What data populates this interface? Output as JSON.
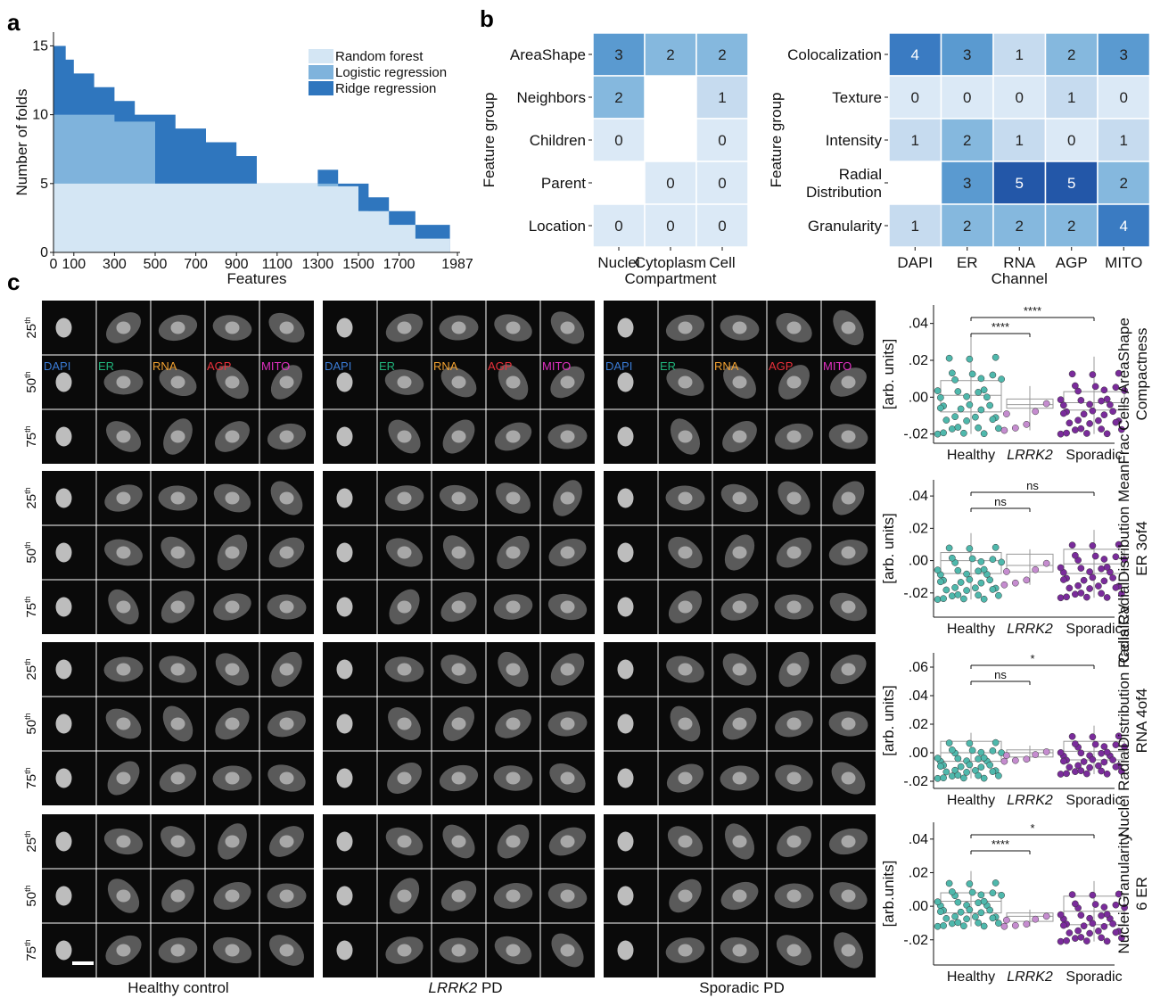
{
  "panels": {
    "a": "a",
    "b": "b",
    "c": "c"
  },
  "chart_data": [
    {
      "type": "bar",
      "title": "",
      "xlabel": "Features",
      "ylabel": "Number of folds",
      "ylim": [
        0,
        16
      ],
      "xlim": [
        0,
        2000
      ],
      "xticks": [
        "0",
        "100",
        "300",
        "500",
        "700",
        "900",
        "1100",
        "1300",
        "1500",
        "1700",
        "1987"
      ],
      "xtick_values": [
        0,
        100,
        300,
        500,
        700,
        900,
        1100,
        1300,
        1500,
        1700,
        1987
      ],
      "yticks": [
        "0",
        "5",
        "10",
        "15"
      ],
      "legend": [
        "Random forest",
        "Logistic regression",
        "Ridge regression"
      ],
      "legend_position": "top-right",
      "colors": {
        "Random forest": "#d4e6f4",
        "Logistic regression": "#7fb3dc",
        "Ridge regression": "#2f76be"
      },
      "stacked_total_steps": [
        [
          0,
          15
        ],
        [
          60,
          14
        ],
        [
          100,
          13
        ],
        [
          200,
          12
        ],
        [
          300,
          11
        ],
        [
          400,
          10
        ],
        [
          600,
          9
        ],
        [
          750,
          8
        ],
        [
          900,
          7
        ],
        [
          1000,
          5
        ],
        [
          1300,
          6
        ],
        [
          1400,
          5
        ],
        [
          1550,
          4
        ],
        [
          1650,
          3
        ],
        [
          1780,
          2
        ],
        [
          1950,
          0
        ]
      ]
    },
    {
      "type": "heatmap",
      "ylabel": "Feature group",
      "xlabel": "Compartment",
      "columns": [
        "Nuclei",
        "Cytoplasm",
        "Cell"
      ],
      "rows": [
        "AreaShape",
        "Neighbors",
        "Children",
        "Parent",
        "Location"
      ],
      "values": [
        [
          3,
          2,
          2
        ],
        [
          2,
          null,
          1
        ],
        [
          0,
          null,
          0
        ],
        [
          null,
          0,
          0
        ],
        [
          0,
          0,
          0
        ]
      ]
    },
    {
      "type": "heatmap",
      "ylabel": "Feature group",
      "xlabel": "Channel",
      "columns": [
        "DAPI",
        "ER",
        "RNA",
        "AGP",
        "MITO"
      ],
      "rows": [
        "Colocalization",
        "Texture",
        "Intensity",
        "Radial Distribution",
        "Granularity"
      ],
      "values": [
        [
          4,
          3,
          1,
          2,
          3
        ],
        [
          0,
          0,
          0,
          1,
          0
        ],
        [
          1,
          2,
          1,
          0,
          1
        ],
        [
          null,
          3,
          5,
          5,
          2
        ],
        [
          1,
          2,
          2,
          2,
          4
        ]
      ]
    },
    {
      "type": "scatter",
      "ylabel": "[arb. units]",
      "side_label": "Cells AreaShape Compactness",
      "categories": [
        "Healthy",
        "LRRK2",
        "Sporadic"
      ],
      "ylim": [
        -0.025,
        0.05
      ],
      "yticks": [
        ".04",
        ".02",
        ".00",
        "-.02"
      ],
      "ytick_values": [
        0.04,
        0.02,
        0.0,
        -0.02
      ],
      "boxes": [
        {
          "q1": -0.008,
          "med": 0.001,
          "q3": 0.009,
          "lo": -0.02,
          "hi": 0.033
        },
        {
          "q1": -0.006,
          "med": -0.004,
          "q3": -0.001,
          "lo": -0.018,
          "hi": 0.006
        },
        {
          "q1": -0.007,
          "med": -0.003,
          "q3": 0.003,
          "lo": -0.02,
          "hi": 0.022
        }
      ],
      "significance": [
        {
          "pair": [
            0,
            1
          ],
          "label": "****"
        },
        {
          "pair": [
            0,
            2
          ],
          "label": "****"
        }
      ]
    },
    {
      "type": "scatter",
      "ylabel": "[arb. units]",
      "side_label": "Cells RadialDistribution MeanFrac ER 3of4",
      "categories": [
        "Healthy",
        "LRRK2",
        "Sporadic"
      ],
      "ylim": [
        -0.035,
        0.05
      ],
      "yticks": [
        ".04",
        ".02",
        ".00",
        "-.02"
      ],
      "ytick_values": [
        0.04,
        0.02,
        0.0,
        -0.02
      ],
      "boxes": [
        {
          "q1": -0.008,
          "med": 0.0,
          "q3": 0.005,
          "lo": -0.024,
          "hi": 0.017
        },
        {
          "q1": -0.007,
          "med": -0.003,
          "q3": 0.004,
          "lo": -0.015,
          "hi": 0.007
        },
        {
          "q1": -0.008,
          "med": -0.002,
          "q3": 0.007,
          "lo": -0.023,
          "hi": 0.019
        }
      ],
      "significance": [
        {
          "pair": [
            0,
            1
          ],
          "label": "ns"
        },
        {
          "pair": [
            0,
            2
          ],
          "label": "ns"
        }
      ]
    },
    {
      "type": "scatter",
      "ylabel": "[arb. units]",
      "side_label": "Nuclei RadialDistribution RadialCV RNA 4of4",
      "categories": [
        "Healthy",
        "LRRK2",
        "Sporadic"
      ],
      "ylim": [
        -0.025,
        0.07
      ],
      "yticks": [
        ".06",
        ".04",
        ".02",
        ".00",
        "-.02"
      ],
      "ytick_values": [
        0.06,
        0.04,
        0.02,
        0.0,
        -0.02
      ],
      "boxes": [
        {
          "q1": -0.006,
          "med": 0.0,
          "q3": 0.008,
          "lo": -0.018,
          "hi": 0.014
        },
        {
          "q1": -0.003,
          "med": 0.0,
          "q3": 0.002,
          "lo": -0.006,
          "hi": 0.005
        },
        {
          "q1": -0.005,
          "med": 0.001,
          "q3": 0.008,
          "lo": -0.015,
          "hi": 0.019
        }
      ],
      "significance": [
        {
          "pair": [
            0,
            1
          ],
          "label": "ns"
        },
        {
          "pair": [
            0,
            2
          ],
          "label": "*"
        }
      ]
    },
    {
      "type": "scatter",
      "ylabel": "[arb.units]",
      "side_label": "Nuclei Granularity 6 ER",
      "categories": [
        "Healthy",
        "LRRK2",
        "Sporadic"
      ],
      "ylim": [
        -0.035,
        0.05
      ],
      "yticks": [
        ".04",
        ".02",
        ".00",
        "-.02"
      ],
      "ytick_values": [
        0.04,
        0.02,
        0.0,
        -0.02
      ],
      "boxes": [
        {
          "q1": -0.004,
          "med": 0.003,
          "q3": 0.008,
          "lo": -0.012,
          "hi": 0.021
        },
        {
          "q1": -0.009,
          "med": -0.006,
          "q3": -0.004,
          "lo": -0.012,
          "hi": -0.002
        },
        {
          "q1": -0.011,
          "med": -0.003,
          "q3": 0.006,
          "lo": -0.021,
          "hi": 0.015
        }
      ],
      "significance": [
        {
          "pair": [
            0,
            1
          ],
          "label": "****"
        },
        {
          "pair": [
            0,
            2
          ],
          "label": "*"
        }
      ]
    }
  ],
  "image_grid": {
    "channels": [
      "DAPI",
      "ER",
      "RNA",
      "AGP",
      "MITO"
    ],
    "channel_colors": [
      "#3a7bd5",
      "#20b27a",
      "#f0a030",
      "#e8303a",
      "#e030c0"
    ],
    "percentiles": [
      "25",
      "50",
      "75"
    ],
    "percentile_suffix": "th",
    "groups": [
      "Healthy control",
      "LRRK2",
      "Sporadic PD"
    ],
    "group_suffix": "PD"
  }
}
